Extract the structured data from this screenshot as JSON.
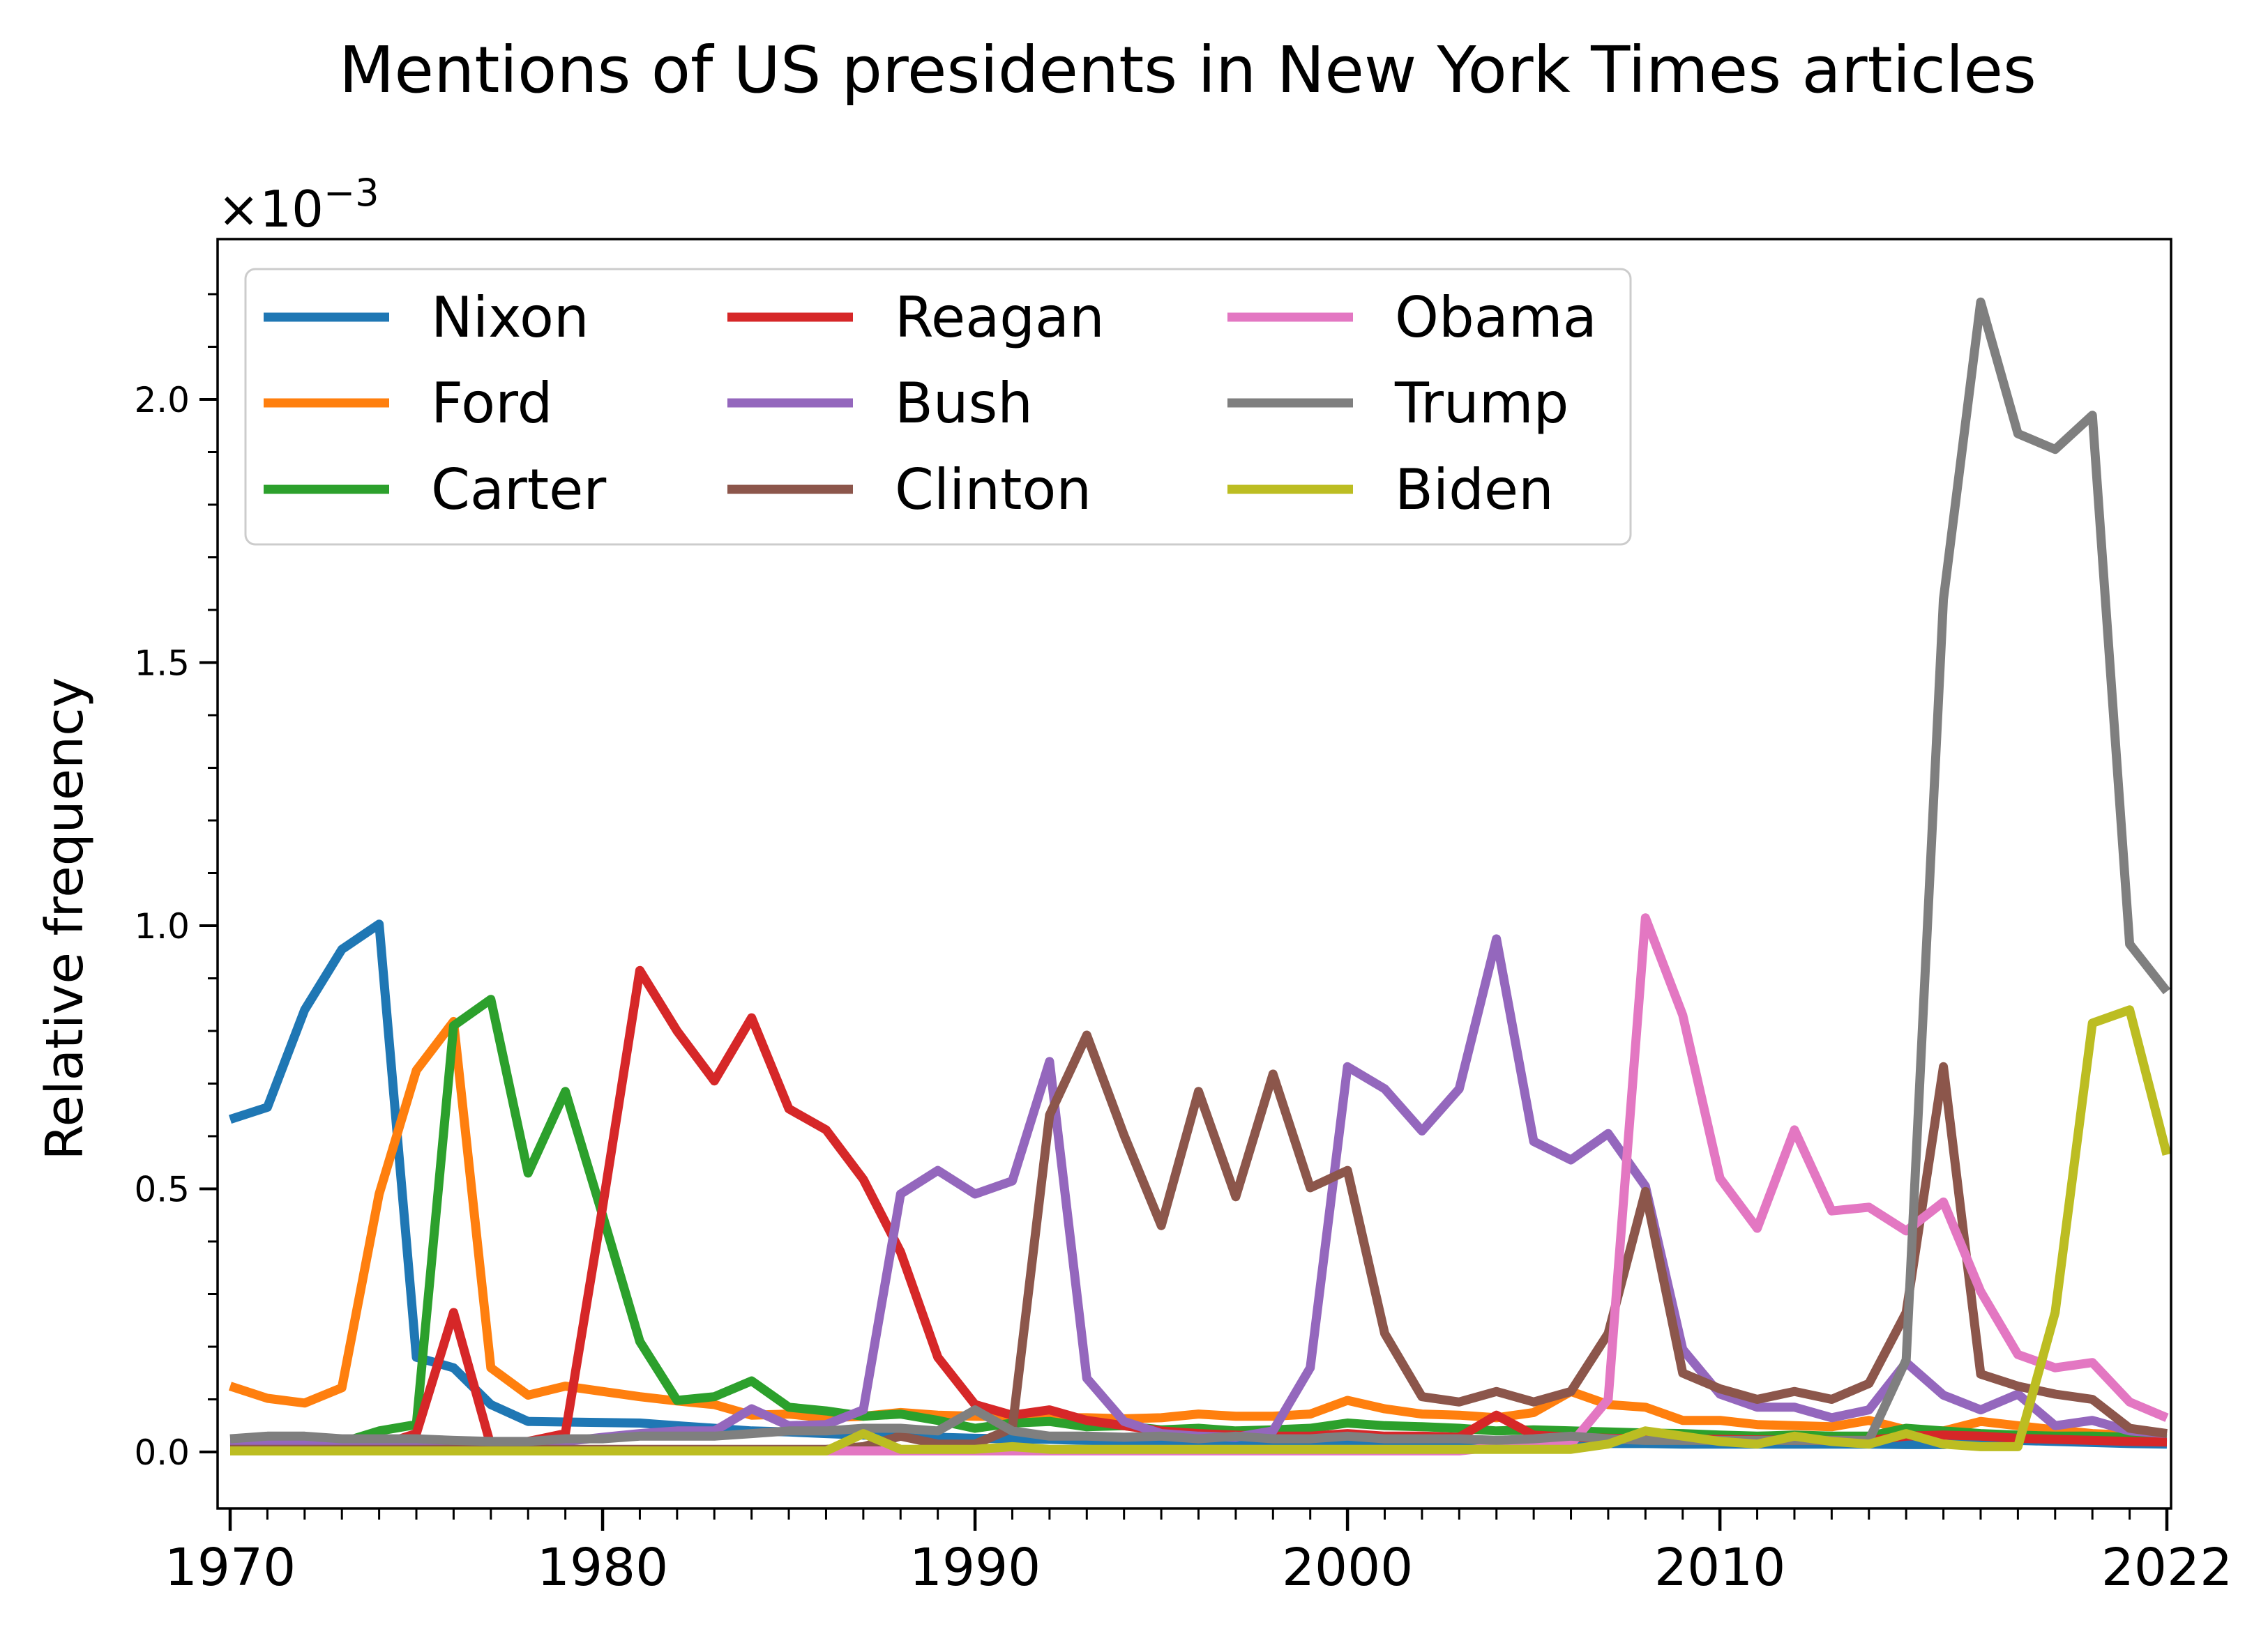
{
  "chart_data": {
    "type": "line",
    "title": "Mentions of US presidents in New York Times articles",
    "xlabel": "",
    "ylabel": "Relative frequency",
    "offset_text": "×10",
    "offset_exponent": "−3",
    "xlim": [
      1970,
      2022
    ],
    "ylim": [
      -0.00011,
      0.0023
    ],
    "x_ticks": [
      1970,
      1980,
      1990,
      2000,
      2010,
      2022
    ],
    "y_ticks": [
      0.0,
      0.0005,
      0.001,
      0.0015,
      0.002
    ],
    "y_tick_labels": [
      "0.0",
      "0.5",
      "1.0",
      "1.5",
      "2.0"
    ],
    "grid": false,
    "legend": "top-left",
    "x": [
      1970,
      1971,
      1972,
      1973,
      1974,
      1975,
      1976,
      1977,
      1978,
      1979,
      1980,
      1981,
      1982,
      1983,
      1984,
      1985,
      1986,
      1987,
      1988,
      1989,
      1990,
      1991,
      1992,
      1993,
      1994,
      1995,
      1996,
      1997,
      1998,
      1999,
      2000,
      2001,
      2002,
      2003,
      2004,
      2005,
      2006,
      2007,
      2008,
      2009,
      2010,
      2011,
      2012,
      2013,
      2014,
      2015,
      2016,
      2017,
      2018,
      2019,
      2020,
      2021,
      2022
    ],
    "series": [
      {
        "name": "Nixon",
        "color": "#1f77b4",
        "values": [
          0.000632,
          0.000655,
          0.00084,
          0.000955,
          0.001003,
          0.00018,
          0.00016,
          9e-05,
          5.8e-05,
          5.7e-05,
          5.6e-05,
          5.5e-05,
          5e-05,
          4.5e-05,
          4e-05,
          3.8e-05,
          3.5e-05,
          3.2e-05,
          3e-05,
          2.8e-05,
          2.6e-05,
          2.5e-05,
          2.4e-05,
          2.2e-05,
          2.1e-05,
          2e-05,
          2e-05,
          1.9e-05,
          1.9e-05,
          1.8e-05,
          1.8e-05,
          1.8e-05,
          1.7e-05,
          1.7e-05,
          1.7e-05,
          1.6e-05,
          1.6e-05,
          1.6e-05,
          1.6e-05,
          1.5e-05,
          1.5e-05,
          1.5e-05,
          1.5e-05,
          1.5e-05,
          1.5e-05,
          1.4e-05,
          1.4e-05,
          2e-05,
          2.2e-05,
          2e-05,
          1.8e-05,
          1.6e-05,
          1.5e-05
        ]
      },
      {
        "name": "Ford",
        "color": "#ff7f0e",
        "values": [
          0.000125,
          0.000102,
          9.3e-05,
          0.000122,
          0.00049,
          0.000725,
          0.000818,
          0.00016,
          0.000108,
          0.000125,
          0.000115,
          0.000105,
          9.7e-05,
          9e-05,
          7e-05,
          7.2e-05,
          6.5e-05,
          6.8e-05,
          7.5e-05,
          7e-05,
          6.8e-05,
          6.7e-05,
          6.5e-05,
          6.5e-05,
          6.3e-05,
          6.5e-05,
          7.2e-05,
          6.8e-05,
          6.8e-05,
          7.2e-05,
          9.8e-05,
          8.2e-05,
          7.2e-05,
          7e-05,
          6.5e-05,
          7.5e-05,
          0.000115,
          9e-05,
          8.5e-05,
          6e-05,
          6e-05,
          5.2e-05,
          5e-05,
          4.8e-05,
          6e-05,
          4.2e-05,
          4e-05,
          5.8e-05,
          5e-05,
          4.2e-05,
          3.5e-05,
          3.2e-05,
          3e-05
        ]
      },
      {
        "name": "Carter",
        "color": "#2ca02c",
        "values": [
          1e-05,
          1e-05,
          1.2e-05,
          1.8e-05,
          4e-05,
          5.2e-05,
          0.00081,
          0.00086,
          0.00053,
          0.000685,
          0.00045,
          0.00021,
          9.8e-05,
          0.000105,
          0.000135,
          8.5e-05,
          7.8e-05,
          6.8e-05,
          7.2e-05,
          6e-05,
          4.5e-05,
          5.5e-05,
          5.8e-05,
          4.8e-05,
          5e-05,
          4.2e-05,
          4.5e-05,
          4e-05,
          4.2e-05,
          4.5e-05,
          5.5e-05,
          5e-05,
          4.8e-05,
          4.5e-05,
          4e-05,
          4.2e-05,
          4e-05,
          3.8e-05,
          3.6e-05,
          3.5e-05,
          3.2e-05,
          3e-05,
          3.2e-05,
          3e-05,
          3e-05,
          4.5e-05,
          4e-05,
          3.5e-05,
          3.2e-05,
          3e-05,
          3e-05,
          2.8e-05,
          2.6e-05
        ]
      },
      {
        "name": "Reagan",
        "color": "#d62728",
        "values": [
          8e-06,
          8e-06,
          8e-06,
          1e-05,
          1.2e-05,
          3.5e-05,
          0.000265,
          1.2e-05,
          2e-05,
          3.5e-05,
          0.000465,
          0.000915,
          0.0008,
          0.000705,
          0.000825,
          0.000652,
          0.000612,
          0.000518,
          0.00038,
          0.00018,
          9e-05,
          7e-05,
          8e-05,
          6e-05,
          5e-05,
          4e-05,
          3.5e-05,
          3.2e-05,
          3e-05,
          3e-05,
          3.5e-05,
          3e-05,
          3e-05,
          2.8e-05,
          7e-05,
          3.2e-05,
          2.8e-05,
          2.6e-05,
          2.5e-05,
          2.4e-05,
          2.4e-05,
          2.3e-05,
          2.2e-05,
          2.2e-05,
          2.2e-05,
          3e-05,
          3.2e-05,
          3e-05,
          2.6e-05,
          2.4e-05,
          2.2e-05,
          2e-05,
          1.9e-05
        ]
      },
      {
        "name": "Bush",
        "color": "#9467bd",
        "values": [
          1.5e-05,
          1.5e-05,
          1.5e-05,
          1.5e-05,
          1.5e-05,
          1.5e-05,
          1.8e-05,
          1.8e-05,
          1.8e-05,
          2e-05,
          2.8e-05,
          3.5e-05,
          4e-05,
          4e-05,
          8.2e-05,
          5e-05,
          5.2e-05,
          8e-05,
          0.00049,
          0.000535,
          0.00049,
          0.000515,
          0.000742,
          0.00014,
          5.8e-05,
          3.5e-05,
          3e-05,
          2.8e-05,
          4e-05,
          0.00016,
          0.000732,
          0.00069,
          0.00061,
          0.00069,
          0.000975,
          0.00059,
          0.000555,
          0.000605,
          0.000505,
          0.000195,
          0.00011,
          8.5e-05,
          8.5e-05,
          6.5e-05,
          8e-05,
          0.00017,
          0.000108,
          8e-05,
          0.00011,
          5e-05,
          6e-05,
          4e-05,
          3.5e-05
        ]
      },
      {
        "name": "Clinton",
        "color": "#8c564b",
        "values": [
          5e-06,
          5e-06,
          5e-06,
          5e-06,
          5e-06,
          5e-06,
          5e-06,
          5e-06,
          5e-06,
          5e-06,
          5e-06,
          5e-06,
          5e-06,
          5e-06,
          5e-06,
          5e-06,
          5e-06,
          1e-05,
          3e-05,
          1.5e-05,
          1.5e-05,
          4.5e-05,
          0.00064,
          0.000792,
          0.000602,
          0.00043,
          0.000685,
          0.000485,
          0.000718,
          0.000502,
          0.000535,
          0.000225,
          0.000105,
          9.5e-05,
          0.000115,
          9.5e-05,
          0.000115,
          0.000225,
          0.000495,
          0.00015,
          0.00012,
          0.0001,
          0.000115,
          0.0001,
          0.00013,
          0.000265,
          0.000732,
          0.000148,
          0.000125,
          0.00011,
          0.0001,
          4.5e-05,
          3.5e-05
        ]
      },
      {
        "name": "Obama",
        "color": "#e377c2",
        "values": [
          2e-06,
          2e-06,
          2e-06,
          2e-06,
          2e-06,
          2e-06,
          2e-06,
          2e-06,
          2e-06,
          2e-06,
          2e-06,
          2e-06,
          2e-06,
          2e-06,
          2e-06,
          2e-06,
          2e-06,
          2e-06,
          2e-06,
          2e-06,
          2e-06,
          2e-06,
          2e-06,
          2e-06,
          2e-06,
          2e-06,
          2e-06,
          2e-06,
          2e-06,
          2e-06,
          2e-06,
          2e-06,
          2e-06,
          2e-06,
          1e-05,
          1e-05,
          1.5e-05,
          0.0001,
          0.001015,
          0.00083,
          0.00052,
          0.000425,
          0.000612,
          0.000458,
          0.000465,
          0.00042,
          0.000475,
          0.000305,
          0.000185,
          0.00016,
          0.00017,
          9.5e-05,
          6.5e-05
        ]
      },
      {
        "name": "Trump",
        "color": "#7f7f7f",
        "values": [
          2.5e-05,
          3e-05,
          3e-05,
          2.5e-05,
          2.5e-05,
          2.5e-05,
          2.2e-05,
          2e-05,
          2e-05,
          2.5e-05,
          2.5e-05,
          3e-05,
          3e-05,
          3e-05,
          3.5e-05,
          4e-05,
          4e-05,
          4.5e-05,
          4.5e-05,
          4e-05,
          8e-05,
          4e-05,
          3e-05,
          3e-05,
          2.8e-05,
          3e-05,
          2.5e-05,
          3e-05,
          2.5e-05,
          2.5e-05,
          3e-05,
          2.5e-05,
          2.5e-05,
          2.5e-05,
          2.2e-05,
          2.5e-05,
          3e-05,
          2.5e-05,
          2.2e-05,
          2.2e-05,
          2.2e-05,
          2.2e-05,
          2.2e-05,
          2.2e-05,
          2.2e-05,
          0.000175,
          0.00162,
          0.002185,
          0.001935,
          0.001905,
          0.00197,
          0.000965,
          0.000875
        ]
      },
      {
        "name": "Biden",
        "color": "#bcbd22",
        "values": [
          2e-06,
          2e-06,
          2e-06,
          2e-06,
          2e-06,
          2e-06,
          2e-06,
          2e-06,
          2e-06,
          2e-06,
          2e-06,
          2e-06,
          2e-06,
          2e-06,
          2e-06,
          2e-06,
          2e-06,
          3.5e-05,
          5e-06,
          5e-06,
          5e-06,
          1e-05,
          5e-06,
          5e-06,
          5e-06,
          5e-06,
          5e-06,
          5e-06,
          5e-06,
          5e-06,
          5e-06,
          5e-06,
          5e-06,
          5e-06,
          5e-06,
          5e-06,
          5e-06,
          1.5e-05,
          4e-05,
          3e-05,
          2e-05,
          1.5e-05,
          3e-05,
          2e-05,
          1.5e-05,
          3.5e-05,
          1.5e-05,
          1e-05,
          1e-05,
          0.000265,
          0.000815,
          0.00084,
          0.000565
        ]
      }
    ]
  }
}
